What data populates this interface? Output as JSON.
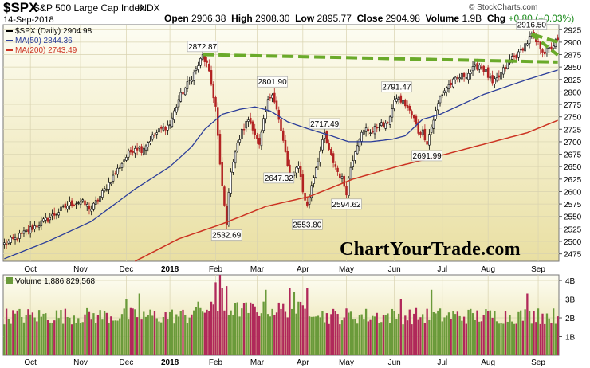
{
  "header": {
    "symbol": "$SPX",
    "name": "S&P 500 Large Cap Index",
    "exchange": "INDX",
    "date": "14-Sep-2018",
    "open_label": "Open",
    "open": "2906.38",
    "high_label": "High",
    "high": "2908.30",
    "low_label": "Low",
    "low": "2895.77",
    "close_label": "Close",
    "close": "2904.98",
    "volume_label": "Volume",
    "volume": "1.9B",
    "chg_label": "Chg",
    "chg": "+0.80 (+0.03%)",
    "copyright": "© StockCharts.com"
  },
  "watermark": "ChartYourTrade.com",
  "colors": {
    "bg_top": "#fdfdf3",
    "bg_bottom": "#e9dfa2",
    "up": "#2e8b2e",
    "down": "#b22222",
    "ma50": "#2b3d9a",
    "ma200": "#cc3322",
    "trendline": "#6aaa2a",
    "vol_up": "#6a9a3a",
    "vol_down": "#b0285a"
  },
  "chart_data": [
    {
      "type": "candlestick",
      "title": "",
      "legend": [
        {
          "label": "$SPX (Daily) 2904.98",
          "color": "#000000"
        },
        {
          "label": "MA(50) 2844.36",
          "color": "#2b3d9a"
        },
        {
          "label": "MA(200) 2743.49",
          "color": "#cc3322"
        }
      ],
      "legend_position": "top-left",
      "y_axis_side": "right",
      "ylim": [
        2460,
        2935
      ],
      "yticks": [
        2475,
        2500,
        2525,
        2550,
        2575,
        2600,
        2625,
        2650,
        2675,
        2700,
        2725,
        2750,
        2775,
        2800,
        2825,
        2850,
        2875,
        2900,
        2925
      ],
      "x_tick_labels": [
        "Oct",
        "Nov",
        "Dec",
        "2018",
        "Feb",
        "Mar",
        "Apr",
        "May",
        "Jun",
        "Jul",
        "Aug",
        "Sep"
      ],
      "x_tick_trading_day": [
        12,
        35,
        56,
        76,
        97,
        116,
        137,
        157,
        179,
        201,
        222,
        245
      ],
      "trading_days": 255,
      "close_anchors": [
        [
          0,
          2495
        ],
        [
          5,
          2505
        ],
        [
          12,
          2525
        ],
        [
          20,
          2545
        ],
        [
          30,
          2575
        ],
        [
          35,
          2580
        ],
        [
          40,
          2565
        ],
        [
          44,
          2590
        ],
        [
          50,
          2630
        ],
        [
          55,
          2665
        ],
        [
          60,
          2690
        ],
        [
          63,
          2685
        ],
        [
          68,
          2710
        ],
        [
          72,
          2725
        ],
        [
          76,
          2735
        ],
        [
          80,
          2785
        ],
        [
          84,
          2815
        ],
        [
          88,
          2845
        ],
        [
          91,
          2872
        ],
        [
          93,
          2855
        ],
        [
          95,
          2815
        ],
        [
          97,
          2770
        ],
        [
          99,
          2650
        ],
        [
          101,
          2570
        ],
        [
          102,
          2540
        ],
        [
          104,
          2645
        ],
        [
          106,
          2680
        ],
        [
          109,
          2720
        ],
        [
          112,
          2745
        ],
        [
          114,
          2730
        ],
        [
          117,
          2690
        ],
        [
          119,
          2740
        ],
        [
          121,
          2780
        ],
        [
          123,
          2801
        ],
        [
          125,
          2765
        ],
        [
          127,
          2720
        ],
        [
          129,
          2680
        ],
        [
          131,
          2620
        ],
        [
          133,
          2640
        ],
        [
          135,
          2655
        ],
        [
          137,
          2600
        ],
        [
          139,
          2570
        ],
        [
          141,
          2614
        ],
        [
          143,
          2650
        ],
        [
          145,
          2680
        ],
        [
          147,
          2715
        ],
        [
          149,
          2680
        ],
        [
          151,
          2660
        ],
        [
          153,
          2640
        ],
        [
          155,
          2625
        ],
        [
          157,
          2600
        ],
        [
          159,
          2650
        ],
        [
          161,
          2685
        ],
        [
          163,
          2710
        ],
        [
          166,
          2725
        ],
        [
          169,
          2720
        ],
        [
          172,
          2735
        ],
        [
          175,
          2730
        ],
        [
          178,
          2765
        ],
        [
          180,
          2790
        ],
        [
          182,
          2782
        ],
        [
          184,
          2775
        ],
        [
          186,
          2760
        ],
        [
          188,
          2745
        ],
        [
          190,
          2720
        ],
        [
          192,
          2720
        ],
        [
          194,
          2700
        ],
        [
          196,
          2730
        ],
        [
          198,
          2760
        ],
        [
          200,
          2790
        ],
        [
          203,
          2810
        ],
        [
          206,
          2820
        ],
        [
          209,
          2830
        ],
        [
          212,
          2835
        ],
        [
          215,
          2845
        ],
        [
          218,
          2855
        ],
        [
          221,
          2840
        ],
        [
          224,
          2815
        ],
        [
          227,
          2830
        ],
        [
          230,
          2850
        ],
        [
          233,
          2870
        ],
        [
          236,
          2875
        ],
        [
          238,
          2890
        ],
        [
          240,
          2900
        ],
        [
          242,
          2914
        ],
        [
          244,
          2900
        ],
        [
          246,
          2890
        ],
        [
          248,
          2880
        ],
        [
          250,
          2885
        ],
        [
          252,
          2895
        ],
        [
          254,
          2905
        ]
      ],
      "ma50_anchors": [
        [
          0,
          2465
        ],
        [
          20,
          2500
        ],
        [
          40,
          2540
        ],
        [
          60,
          2605
        ],
        [
          76,
          2650
        ],
        [
          86,
          2690
        ],
        [
          92,
          2725
        ],
        [
          100,
          2755
        ],
        [
          108,
          2765
        ],
        [
          115,
          2770
        ],
        [
          122,
          2762
        ],
        [
          130,
          2740
        ],
        [
          140,
          2725
        ],
        [
          150,
          2712
        ],
        [
          158,
          2700
        ],
        [
          168,
          2700
        ],
        [
          178,
          2705
        ],
        [
          184,
          2712
        ],
        [
          192,
          2745
        ],
        [
          200,
          2755
        ],
        [
          210,
          2775
        ],
        [
          220,
          2795
        ],
        [
          230,
          2810
        ],
        [
          240,
          2825
        ],
        [
          254,
          2844
        ]
      ],
      "ma200_anchors": [
        [
          60,
          2460
        ],
        [
          80,
          2505
        ],
        [
          100,
          2535
        ],
        [
          120,
          2570
        ],
        [
          140,
          2590
        ],
        [
          160,
          2625
        ],
        [
          180,
          2650
        ],
        [
          200,
          2672
        ],
        [
          220,
          2695
        ],
        [
          240,
          2718
        ],
        [
          254,
          2743
        ]
      ],
      "trendlines": [
        {
          "points": [
            [
              91,
              2875
            ],
            [
              254,
              2860
            ]
          ]
        },
        {
          "points": [
            [
              242,
              2916
            ],
            [
              254,
              2900
            ]
          ]
        }
      ],
      "annotations": [
        {
          "label": "2872.87",
          "day": 91,
          "value": 2872.87,
          "placement": "above"
        },
        {
          "label": "2532.69",
          "day": 102,
          "value": 2532.69,
          "placement": "below"
        },
        {
          "label": "2801.90",
          "day": 123,
          "value": 2801.9,
          "placement": "above"
        },
        {
          "label": "2647.32",
          "day": 126,
          "value": 2647.32,
          "placement": "below"
        },
        {
          "label": "2553.80",
          "day": 139,
          "value": 2553.8,
          "placement": "below"
        },
        {
          "label": "2717.49",
          "day": 147,
          "value": 2717.49,
          "placement": "above"
        },
        {
          "label": "2594.62",
          "day": 157,
          "value": 2594.62,
          "placement": "below"
        },
        {
          "label": "2791.47",
          "day": 180,
          "value": 2791.47,
          "placement": "above"
        },
        {
          "label": "2691.99",
          "day": 194,
          "value": 2691.99,
          "placement": "below"
        },
        {
          "label": "2916.50",
          "day": 242,
          "value": 2916.5,
          "placement": "above"
        }
      ]
    },
    {
      "type": "bar",
      "title": "Volume 1,886,829,568",
      "y_axis_side": "right",
      "ylim": [
        0,
        4.3
      ],
      "y_unit": "B",
      "yticks": [
        1,
        2,
        3,
        4
      ],
      "ytick_labels": [
        "1B",
        "2B",
        "3B",
        "4B"
      ],
      "x_tick_labels": [
        "Oct",
        "Nov",
        "Dec",
        "2018",
        "Feb",
        "Mar",
        "Apr",
        "May",
        "Jun",
        "Jul",
        "Aug",
        "Sep"
      ],
      "base_volume_billions": 2.1,
      "spikes": [
        {
          "day": 97,
          "value": 3.9
        },
        {
          "day": 99,
          "value": 4.3
        },
        {
          "day": 100,
          "value": 3.6
        },
        {
          "day": 102,
          "value": 3.7
        },
        {
          "day": 120,
          "value": 3.5
        },
        {
          "day": 131,
          "value": 3.6
        },
        {
          "day": 133,
          "value": 3.4
        },
        {
          "day": 139,
          "value": 3.6
        },
        {
          "day": 62,
          "value": 3.3
        },
        {
          "day": 56,
          "value": 3.0
        },
        {
          "day": 182,
          "value": 3.0
        },
        {
          "day": 196,
          "value": 3.5
        },
        {
          "day": 240,
          "value": 3.3
        },
        {
          "day": 245,
          "value": 2.5
        }
      ]
    }
  ]
}
